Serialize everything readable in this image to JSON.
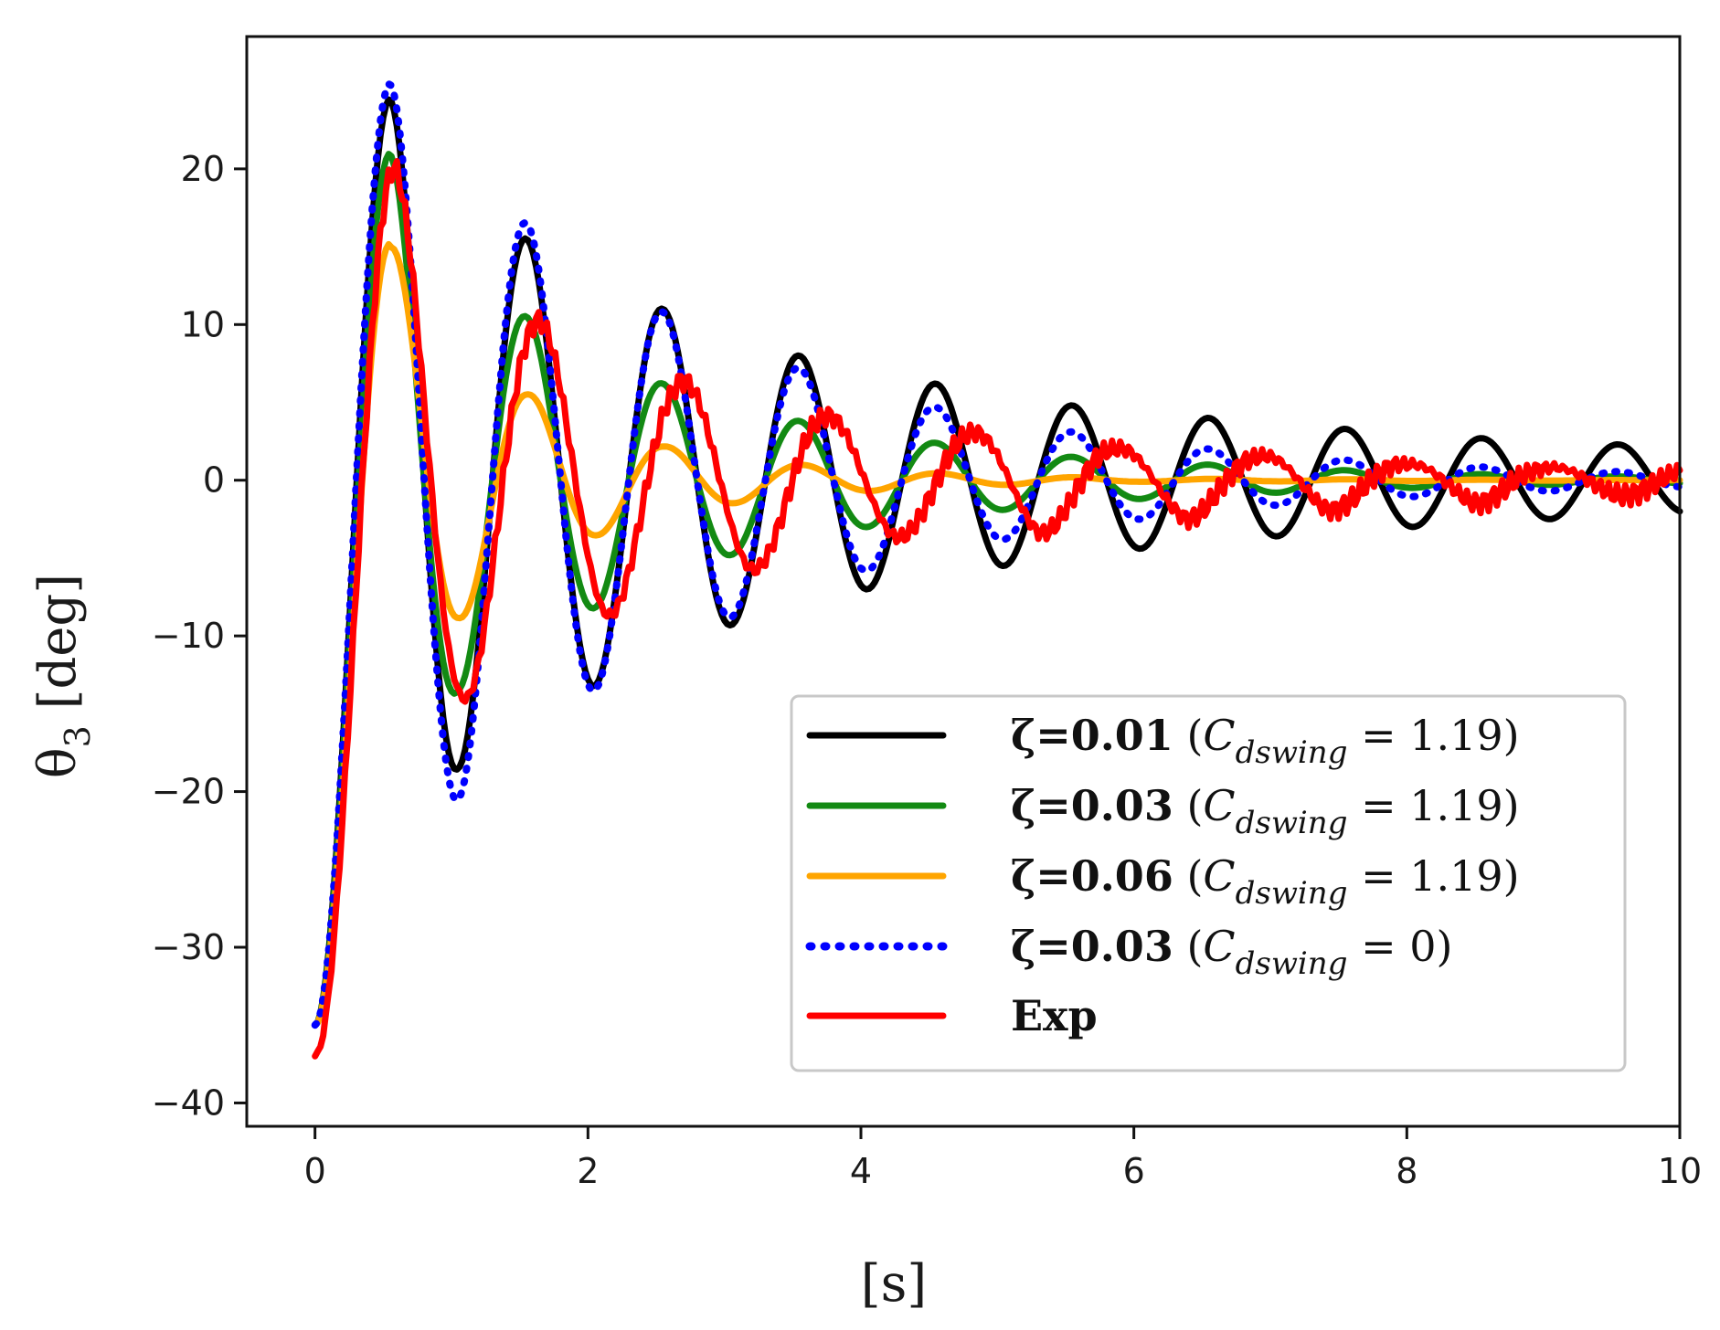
{
  "chart_data": {
    "type": "line",
    "title": "",
    "xlabel": "[s]",
    "ylabel_base": "θ",
    "ylabel_sub": "3",
    "ylabel_unit": "[deg]",
    "xlim": [
      -0.5,
      10
    ],
    "ylim": [
      -41.5,
      28.5
    ],
    "xticks": [
      0,
      2,
      4,
      6,
      8,
      10
    ],
    "xtick_labels": [
      "0",
      "2",
      "4",
      "6",
      "8",
      "10"
    ],
    "yticks": [
      -40,
      -30,
      -20,
      -10,
      0,
      10,
      20
    ],
    "ytick_labels": [
      "−40",
      "−30",
      "−20",
      "−10",
      "0",
      "10",
      "20"
    ],
    "grid": false,
    "legend_position": "lower-right",
    "sample_dt": 0.02,
    "x_start": 0,
    "x_end": 10,
    "series": [
      {
        "name": "ζ=0.01 (C_dswing = 1.19)",
        "label_bold": "ζ=0.01",
        "label_rest": " = 1.19)",
        "color": "#000000",
        "style": "solid",
        "initial": -35,
        "period": 1.0,
        "phase_lag": 0.0,
        "envelope": [
          [
            0,
            60
          ],
          [
            0.55,
            24.5
          ],
          [
            1.05,
            18.5
          ],
          [
            1.55,
            15.5
          ],
          [
            2.05,
            13.2
          ],
          [
            2.55,
            11
          ],
          [
            3.05,
            9.3
          ],
          [
            3.55,
            8
          ],
          [
            4.05,
            7
          ],
          [
            4.55,
            6.2
          ],
          [
            5.05,
            5.5
          ],
          [
            5.55,
            4.8
          ],
          [
            6.05,
            4.4
          ],
          [
            6.55,
            4
          ],
          [
            7.05,
            3.6
          ],
          [
            7.55,
            3.3
          ],
          [
            8.05,
            3
          ],
          [
            8.55,
            2.7
          ],
          [
            9.05,
            2.5
          ],
          [
            9.55,
            2.3
          ],
          [
            10,
            2.1
          ]
        ]
      },
      {
        "name": "ζ=0.03 (C_dswing = 1.19)",
        "label_bold": "ζ=0.03",
        "label_rest": " = 1.19)",
        "color": "#138a13",
        "style": "solid",
        "initial": -35,
        "period": 1.0,
        "phase_lag": 0.0,
        "envelope": [
          [
            0,
            55
          ],
          [
            0.55,
            21
          ],
          [
            1.05,
            13.5
          ],
          [
            1.55,
            10.5
          ],
          [
            2.05,
            8.2
          ],
          [
            2.55,
            6.2
          ],
          [
            3.05,
            4.8
          ],
          [
            3.55,
            3.8
          ],
          [
            4.05,
            3
          ],
          [
            4.55,
            2.4
          ],
          [
            5.05,
            1.9
          ],
          [
            5.55,
            1.5
          ],
          [
            6.05,
            1.2
          ],
          [
            6.55,
            1
          ],
          [
            7.05,
            0.8
          ],
          [
            8,
            0.5
          ],
          [
            9,
            0.3
          ],
          [
            10,
            0.2
          ]
        ]
      },
      {
        "name": "ζ=0.06 (C_dswing = 1.19)",
        "label_bold": "ζ=0.06",
        "label_rest": " = 1.19)",
        "color": "#ffa500",
        "style": "solid",
        "initial": -35,
        "period": 1.0,
        "phase_lag": 0.03,
        "envelope": [
          [
            0,
            50
          ],
          [
            0.55,
            15.2
          ],
          [
            1.05,
            9
          ],
          [
            1.55,
            5.6
          ],
          [
            2.05,
            3.6
          ],
          [
            2.55,
            2.2
          ],
          [
            3.05,
            1.5
          ],
          [
            3.55,
            1
          ],
          [
            4.05,
            0.7
          ],
          [
            4.55,
            0.45
          ],
          [
            5.05,
            0.3
          ],
          [
            6,
            0.1
          ],
          [
            10,
            0
          ]
        ]
      },
      {
        "name": "ζ=0.03 (C_dswing = 0)",
        "label_bold": "ζ=0.03",
        "label_rest": " = 0)",
        "color": "#0000ff",
        "style": "dotted",
        "initial": -35,
        "period": 1.0,
        "phase_lag": 0.0,
        "envelope": [
          [
            0,
            62
          ],
          [
            0.55,
            25.5
          ],
          [
            1.05,
            20.5
          ],
          [
            1.55,
            16.5
          ],
          [
            2.05,
            13.5
          ],
          [
            2.55,
            10.8
          ],
          [
            3.05,
            8.8
          ],
          [
            3.55,
            7.2
          ],
          [
            4.05,
            5.8
          ],
          [
            4.55,
            4.7
          ],
          [
            5.05,
            3.8
          ],
          [
            5.55,
            3.1
          ],
          [
            6.05,
            2.5
          ],
          [
            6.55,
            2
          ],
          [
            7.05,
            1.6
          ],
          [
            7.55,
            1.3
          ],
          [
            8.05,
            1.05
          ],
          [
            8.55,
            0.85
          ],
          [
            9.05,
            0.7
          ],
          [
            9.55,
            0.55
          ],
          [
            10,
            0.45
          ]
        ]
      },
      {
        "name": "Exp",
        "label_bold": "Exp",
        "label_rest": "",
        "color": "#ff0000",
        "style": "solid",
        "initial": -37,
        "period": 1.06,
        "phase_lag": 0.0,
        "envelope": [
          [
            0,
            55
          ],
          [
            0.55,
            20.5
          ],
          [
            1.05,
            14.5
          ],
          [
            1.55,
            10.5
          ],
          [
            2.1,
            9
          ],
          [
            2.6,
            6.5
          ],
          [
            3.15,
            6
          ],
          [
            3.7,
            4.2
          ],
          [
            4.2,
            3.8
          ],
          [
            4.75,
            3
          ],
          [
            5.3,
            3.5
          ],
          [
            5.85,
            2
          ],
          [
            6.4,
            2.5
          ],
          [
            6.9,
            1.5
          ],
          [
            7.4,
            2
          ],
          [
            8,
            1
          ],
          [
            8.5,
            1.5
          ],
          [
            9,
            0.8
          ],
          [
            9.5,
            1
          ],
          [
            10,
            0.8
          ]
        ]
      }
    ]
  },
  "legend": {
    "c_symbol": "C",
    "c_subscript": "dswing",
    "paren_open": " ("
  }
}
